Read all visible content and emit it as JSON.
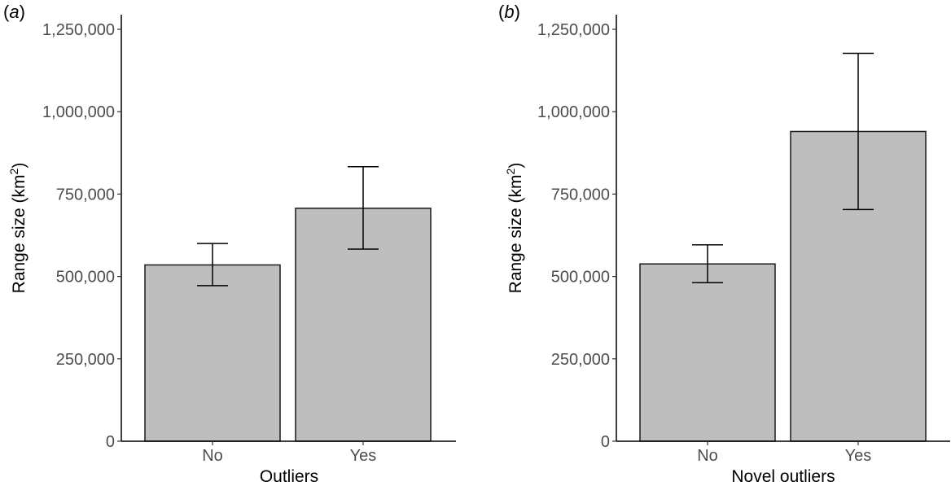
{
  "chart_data": [
    {
      "type": "bar",
      "panel_label": "a",
      "categories": [
        "No",
        "Yes"
      ],
      "values": [
        535000,
        707000
      ],
      "error_low": [
        472000,
        583000
      ],
      "error_high": [
        600000,
        833000
      ],
      "xlabel": "Outliers",
      "ylabel": "Range size (km",
      "ylabel_sup": "2",
      "ylabel_close": ")",
      "ylim": [
        0,
        1300000
      ],
      "yticks": [
        0,
        250000,
        500000,
        750000,
        1000000,
        1250000
      ],
      "ytick_labels": [
        "0",
        "250,000",
        "500,000",
        "750,000",
        "1,000,000",
        "1,250,000"
      ],
      "bar_color": "#bebebe",
      "grid": false
    },
    {
      "type": "bar",
      "panel_label": "b",
      "categories": [
        "No",
        "Yes"
      ],
      "values": [
        538000,
        940000
      ],
      "error_low": [
        481000,
        703000
      ],
      "error_high": [
        596000,
        1177000
      ],
      "xlabel": "Novel outliers",
      "ylabel": "Range size (km",
      "ylabel_sup": "2",
      "ylabel_close": ")",
      "ylim": [
        0,
        1300000
      ],
      "yticks": [
        0,
        250000,
        500000,
        750000,
        1000000,
        1250000
      ],
      "ytick_labels": [
        "0",
        "250,000",
        "500,000",
        "750,000",
        "1,000,000",
        "1,250,000"
      ],
      "bar_color": "#bebebe",
      "grid": false
    }
  ]
}
